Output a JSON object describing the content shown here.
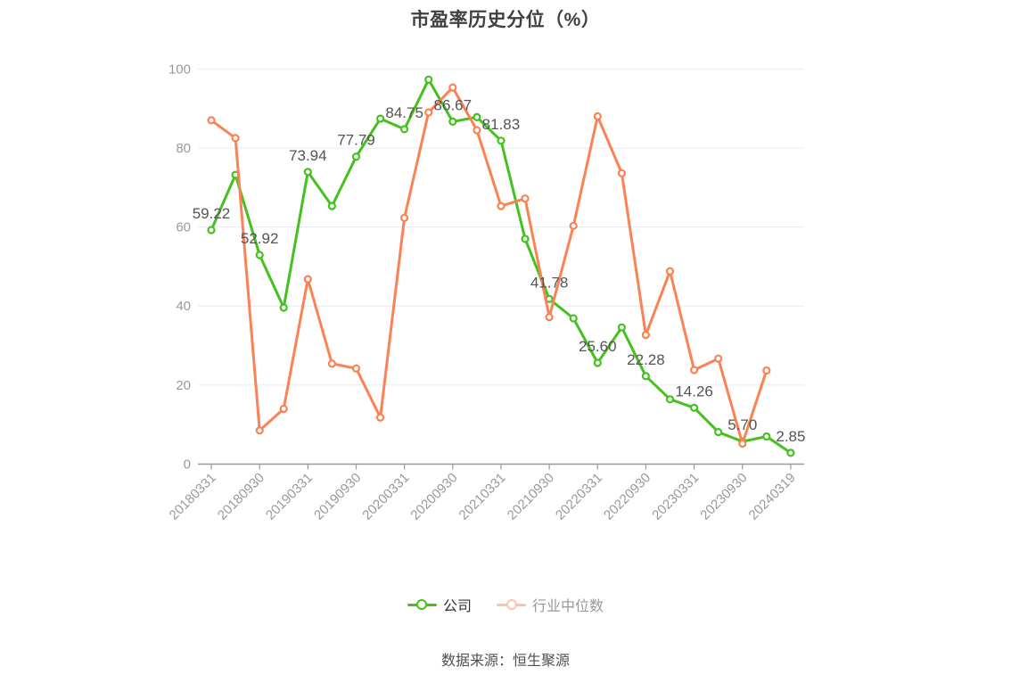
{
  "title": "市盈率历史分位（%）",
  "source_note": "数据来源：恒生聚源",
  "legend": {
    "items": [
      {
        "label": "公司",
        "marker_color": "#44c11f",
        "text_color": "#333333"
      },
      {
        "label": "行业中位数",
        "marker_color": "#fcc5aa",
        "text_color": "#999999"
      }
    ]
  },
  "chart_data": {
    "type": "line",
    "title": "市盈率历史分位（%）",
    "ylim": [
      0,
      100
    ],
    "yticks": [
      0,
      20,
      40,
      60,
      80,
      100
    ],
    "n_points": 25,
    "x_tick_point_indices": [
      0,
      2,
      4,
      6,
      8,
      10,
      12,
      14,
      16,
      18,
      20,
      22,
      24
    ],
    "x_tick_labels": [
      "20180331",
      "20180930",
      "20190331",
      "20190930",
      "20200331",
      "20200930",
      "20210331",
      "20210930",
      "20220331",
      "20220930",
      "20230331",
      "20230930",
      "20240319"
    ],
    "grid": "horizontal-gridlines-only",
    "legend_position": "bottom-center",
    "colors": {
      "grid_color": "#e6ebf4",
      "axis_color": "#999999",
      "axis_text_color": "#999999",
      "point_label_color": "#545454"
    },
    "series": [
      {
        "name": "公司",
        "color": "#44c11f",
        "values": [
          59.22,
          73.2,
          52.92,
          39.6,
          73.94,
          65.3,
          77.79,
          87.4,
          84.75,
          97.3,
          86.67,
          87.8,
          81.83,
          57.0,
          41.78,
          36.9,
          25.6,
          34.6,
          22.28,
          16.4,
          14.26,
          8.1,
          5.7,
          7.0,
          2.85
        ],
        "point_labels": {
          "0": "59.22",
          "2": "52.92",
          "4": "73.94",
          "6": "77.79",
          "8": "84.75",
          "10": "86.67",
          "12": "81.83",
          "14": "41.78",
          "16": "25.60",
          "18": "22.28",
          "20": "14.26",
          "22": "5.70",
          "24": "2.85"
        }
      },
      {
        "name": "行业中位数",
        "color": "#fb8254",
        "values": [
          87.0,
          82.5,
          8.5,
          14.0,
          46.8,
          25.4,
          24.2,
          11.8,
          62.3,
          89.0,
          95.3,
          84.5,
          65.3,
          67.2,
          37.2,
          60.3,
          88.0,
          73.6,
          32.7,
          48.8,
          23.8,
          26.7,
          5.2,
          23.7,
          null
        ],
        "point_labels": {}
      }
    ]
  }
}
